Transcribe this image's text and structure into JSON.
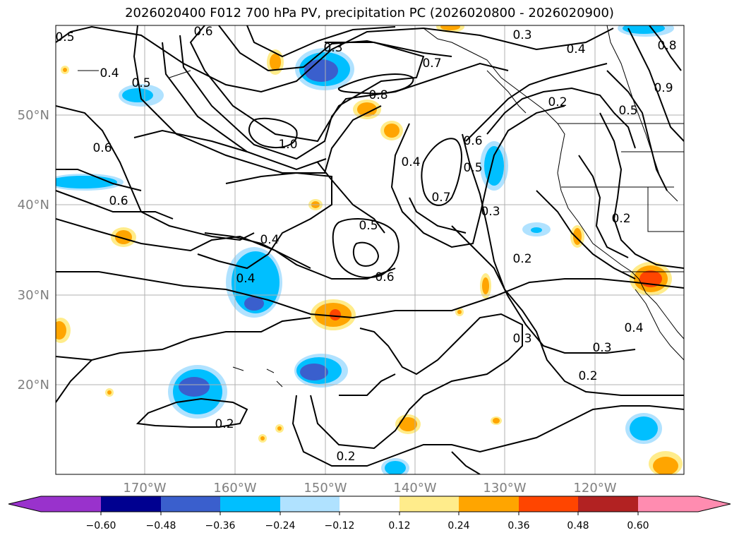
{
  "title": "2026020400 F012 700 hPa PV, precipitation PC (2026020800 - 2026020900)",
  "map": {
    "lat_labels": [
      "50°N",
      "40°N",
      "30°N",
      "20°N"
    ],
    "lon_labels": [
      "170°W",
      "160°W",
      "150°W",
      "140°W",
      "130°W",
      "120°W"
    ],
    "contour_labels": [
      "0.5",
      "0.6",
      "0.4",
      "0.5",
      "0.3",
      "0.3",
      "0.4",
      "0.7",
      "0.8",
      "1.0",
      "0.8",
      "0.9",
      "0.5",
      "0.2",
      "0.6",
      "0.6",
      "0.4",
      "0.6",
      "0.5",
      "0.7",
      "0.3",
      "0.4",
      "0.5",
      "0.4",
      "0.6",
      "0.2",
      "0.2",
      "0.3",
      "0.3",
      "0.4",
      "0.2",
      "0.2",
      "0.2"
    ],
    "label_color": "#7f7f7f"
  },
  "colorbar": {
    "ticks": [
      "−0.60",
      "−0.48",
      "−0.36",
      "−0.24",
      "−0.12",
      "0.12",
      "0.24",
      "0.36",
      "0.48",
      "0.60"
    ],
    "colors": [
      "#9932cc",
      "#000090",
      "#3a5fcd",
      "#00bfff",
      "#b0e2ff",
      "#ffffff",
      "#ffec8b",
      "#ffa500",
      "#ff4500",
      "#b22222",
      "#ff8cb0"
    ]
  }
}
